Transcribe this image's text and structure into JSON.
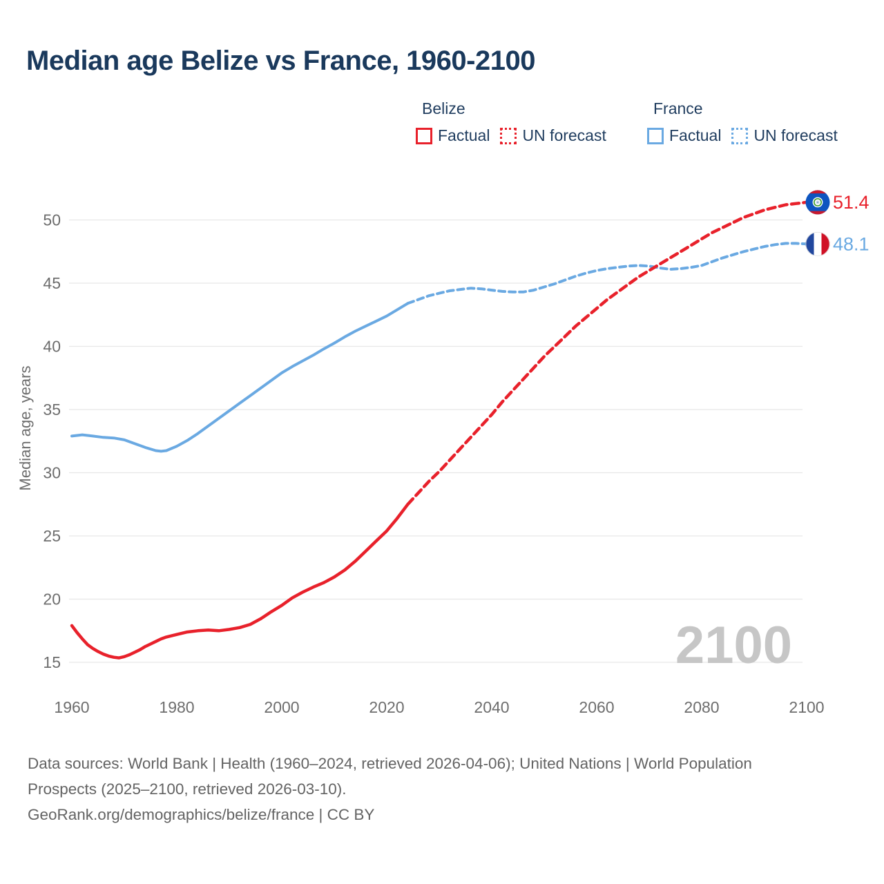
{
  "title": "Median age Belize vs France, 1960-2100",
  "legend": {
    "belize": {
      "label": "Belize",
      "factual": "Factual",
      "forecast": "UN forecast"
    },
    "france": {
      "label": "France",
      "factual": "Factual",
      "forecast": "UN forecast"
    }
  },
  "colors": {
    "belize": "#e8212b",
    "france": "#6aa9e2",
    "title_navy": "#1a395c",
    "axis_text": "#6d6d6d",
    "gridline": "#e7e7e7",
    "watermark": "#c6c6c6",
    "footer_text": "#636363"
  },
  "chart_data": {
    "type": "line",
    "title": "Median age Belize vs France, 1960-2100",
    "xlabel": "",
    "ylabel": "Median age, years",
    "xlim": [
      1960,
      2100
    ],
    "ylim": [
      15,
      52
    ],
    "x_ticks": [
      1960,
      1980,
      2000,
      2020,
      2040,
      2060,
      2080,
      2100
    ],
    "y_ticks": [
      15,
      20,
      25,
      30,
      35,
      40,
      45,
      50
    ],
    "grid": "horizontal-only",
    "legend_position": "top-right",
    "watermark": "2100",
    "series": [
      {
        "id": "france-factual",
        "name": "France — Factual",
        "style": "solid",
        "color": "#6aa9e2",
        "width": 4,
        "dasharray": "none",
        "points": [
          [
            1960,
            32.9
          ],
          [
            1962,
            33.0
          ],
          [
            1964,
            32.9
          ],
          [
            1966,
            32.8
          ],
          [
            1968,
            32.75
          ],
          [
            1970,
            32.6
          ],
          [
            1972,
            32.3
          ],
          [
            1974,
            32.0
          ],
          [
            1976,
            31.75
          ],
          [
            1977,
            31.7
          ],
          [
            1978,
            31.75
          ],
          [
            1980,
            32.1
          ],
          [
            1982,
            32.55
          ],
          [
            1984,
            33.1
          ],
          [
            1986,
            33.7
          ],
          [
            1988,
            34.3
          ],
          [
            1990,
            34.9
          ],
          [
            1992,
            35.5
          ],
          [
            1994,
            36.1
          ],
          [
            1996,
            36.7
          ],
          [
            1998,
            37.3
          ],
          [
            2000,
            37.9
          ],
          [
            2002,
            38.4
          ],
          [
            2004,
            38.85
          ],
          [
            2006,
            39.3
          ],
          [
            2008,
            39.8
          ],
          [
            2010,
            40.25
          ],
          [
            2012,
            40.75
          ],
          [
            2014,
            41.2
          ],
          [
            2016,
            41.6
          ],
          [
            2018,
            42.0
          ],
          [
            2020,
            42.4
          ],
          [
            2022,
            42.9
          ],
          [
            2024,
            43.4
          ]
        ]
      },
      {
        "id": "france-forecast",
        "name": "France — UN forecast",
        "style": "dashed",
        "color": "#6aa9e2",
        "width": 4,
        "dasharray": "9 6",
        "points": [
          [
            2024,
            43.4
          ],
          [
            2026,
            43.7
          ],
          [
            2028,
            44.0
          ],
          [
            2030,
            44.2
          ],
          [
            2032,
            44.4
          ],
          [
            2034,
            44.5
          ],
          [
            2036,
            44.6
          ],
          [
            2038,
            44.55
          ],
          [
            2040,
            44.45
          ],
          [
            2042,
            44.35
          ],
          [
            2044,
            44.3
          ],
          [
            2046,
            44.3
          ],
          [
            2048,
            44.45
          ],
          [
            2050,
            44.7
          ],
          [
            2052,
            44.95
          ],
          [
            2054,
            45.25
          ],
          [
            2056,
            45.55
          ],
          [
            2058,
            45.8
          ],
          [
            2060,
            46.0
          ],
          [
            2062,
            46.15
          ],
          [
            2064,
            46.25
          ],
          [
            2066,
            46.35
          ],
          [
            2068,
            46.4
          ],
          [
            2070,
            46.35
          ],
          [
            2072,
            46.2
          ],
          [
            2074,
            46.1
          ],
          [
            2076,
            46.15
          ],
          [
            2078,
            46.25
          ],
          [
            2080,
            46.4
          ],
          [
            2082,
            46.7
          ],
          [
            2084,
            47.0
          ],
          [
            2086,
            47.25
          ],
          [
            2088,
            47.5
          ],
          [
            2090,
            47.7
          ],
          [
            2092,
            47.9
          ],
          [
            2094,
            48.05
          ],
          [
            2096,
            48.15
          ],
          [
            2098,
            48.15
          ],
          [
            2100,
            48.1
          ]
        ]
      },
      {
        "id": "belize-factual",
        "name": "Belize — Factual",
        "style": "solid",
        "color": "#e8212b",
        "width": 4.5,
        "dasharray": "none",
        "points": [
          [
            1960,
            17.9
          ],
          [
            1961,
            17.35
          ],
          [
            1962,
            16.85
          ],
          [
            1963,
            16.4
          ],
          [
            1964,
            16.1
          ],
          [
            1965,
            15.85
          ],
          [
            1966,
            15.65
          ],
          [
            1967,
            15.5
          ],
          [
            1968,
            15.4
          ],
          [
            1969,
            15.35
          ],
          [
            1970,
            15.45
          ],
          [
            1971,
            15.6
          ],
          [
            1972,
            15.8
          ],
          [
            1973,
            16.0
          ],
          [
            1974,
            16.25
          ],
          [
            1975,
            16.45
          ],
          [
            1976,
            16.65
          ],
          [
            1977,
            16.85
          ],
          [
            1978,
            17.0
          ],
          [
            1979,
            17.1
          ],
          [
            1980,
            17.2
          ],
          [
            1982,
            17.4
          ],
          [
            1984,
            17.5
          ],
          [
            1986,
            17.55
          ],
          [
            1988,
            17.5
          ],
          [
            1990,
            17.6
          ],
          [
            1992,
            17.75
          ],
          [
            1994,
            18.0
          ],
          [
            1996,
            18.45
          ],
          [
            1998,
            19.0
          ],
          [
            2000,
            19.5
          ],
          [
            2002,
            20.1
          ],
          [
            2004,
            20.55
          ],
          [
            2006,
            20.95
          ],
          [
            2008,
            21.3
          ],
          [
            2010,
            21.75
          ],
          [
            2012,
            22.3
          ],
          [
            2014,
            23.0
          ],
          [
            2016,
            23.8
          ],
          [
            2018,
            24.6
          ],
          [
            2020,
            25.4
          ],
          [
            2022,
            26.4
          ],
          [
            2024,
            27.5
          ]
        ]
      },
      {
        "id": "belize-forecast",
        "name": "Belize — UN forecast",
        "style": "dashed",
        "color": "#e8212b",
        "width": 4.5,
        "dasharray": "11 6.5",
        "points": [
          [
            2024,
            27.5
          ],
          [
            2026,
            28.4
          ],
          [
            2028,
            29.3
          ],
          [
            2030,
            30.1
          ],
          [
            2032,
            31.0
          ],
          [
            2034,
            31.9
          ],
          [
            2036,
            32.8
          ],
          [
            2038,
            33.7
          ],
          [
            2040,
            34.6
          ],
          [
            2042,
            35.6
          ],
          [
            2044,
            36.5
          ],
          [
            2046,
            37.4
          ],
          [
            2048,
            38.3
          ],
          [
            2050,
            39.2
          ],
          [
            2052,
            40.0
          ],
          [
            2054,
            40.8
          ],
          [
            2056,
            41.6
          ],
          [
            2058,
            42.3
          ],
          [
            2060,
            43.0
          ],
          [
            2062,
            43.7
          ],
          [
            2064,
            44.3
          ],
          [
            2066,
            44.9
          ],
          [
            2068,
            45.5
          ],
          [
            2070,
            46.0
          ],
          [
            2072,
            46.5
          ],
          [
            2074,
            47.0
          ],
          [
            2076,
            47.5
          ],
          [
            2078,
            48.0
          ],
          [
            2080,
            48.5
          ],
          [
            2082,
            49.0
          ],
          [
            2084,
            49.4
          ],
          [
            2086,
            49.8
          ],
          [
            2088,
            50.2
          ],
          [
            2090,
            50.5
          ],
          [
            2092,
            50.8
          ],
          [
            2094,
            51.0
          ],
          [
            2096,
            51.2
          ],
          [
            2098,
            51.3
          ],
          [
            2100,
            51.4
          ]
        ]
      }
    ],
    "end_labels": [
      {
        "flag": "belize",
        "label": "51.4",
        "value": 51.4,
        "color": "#e8212b"
      },
      {
        "flag": "france",
        "label": "48.1",
        "value": 48.1,
        "color": "#6aa9e2"
      }
    ]
  },
  "footer": {
    "sources": "Data sources: World Bank | Health (1960–2024, retrieved 2026-04-06); United Nations | World Population Prospects (2025–2100, retrieved 2026-03-10).",
    "attribution": "GeoRank.org/demographics/belize/france | CC BY"
  }
}
